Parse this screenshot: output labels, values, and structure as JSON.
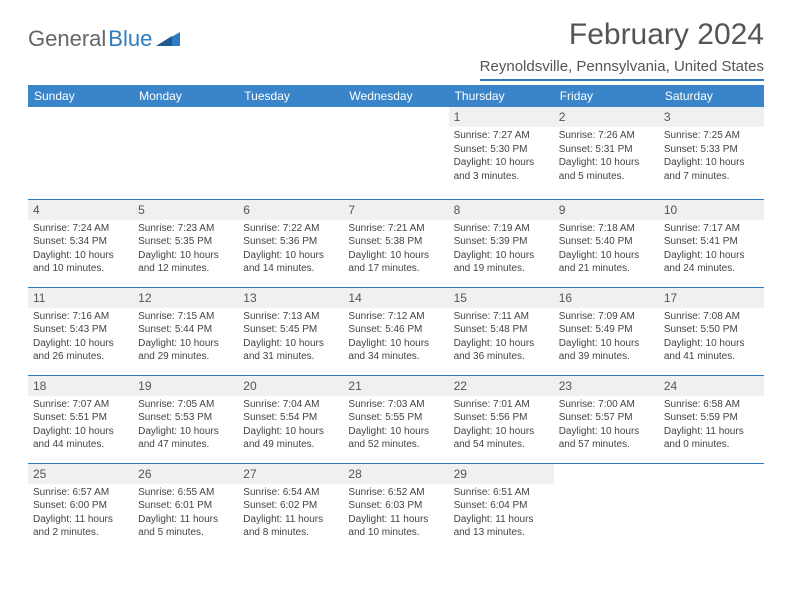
{
  "brand": {
    "part1": "General",
    "part2": "Blue"
  },
  "title": "February 2024",
  "location": "Reynoldsville, Pennsylvania, United States",
  "colors": {
    "header_bg": "#3a85c9",
    "header_text": "#ffffff",
    "border": "#2f7bbf",
    "daynum_bg": "#eff0f1",
    "text": "#444444"
  },
  "weekdays": [
    "Sunday",
    "Monday",
    "Tuesday",
    "Wednesday",
    "Thursday",
    "Friday",
    "Saturday"
  ],
  "weeks": [
    [
      null,
      null,
      null,
      null,
      {
        "n": "1",
        "sr": "Sunrise: 7:27 AM",
        "ss": "Sunset: 5:30 PM",
        "dl": "Daylight: 10 hours and 3 minutes."
      },
      {
        "n": "2",
        "sr": "Sunrise: 7:26 AM",
        "ss": "Sunset: 5:31 PM",
        "dl": "Daylight: 10 hours and 5 minutes."
      },
      {
        "n": "3",
        "sr": "Sunrise: 7:25 AM",
        "ss": "Sunset: 5:33 PM",
        "dl": "Daylight: 10 hours and 7 minutes."
      }
    ],
    [
      {
        "n": "4",
        "sr": "Sunrise: 7:24 AM",
        "ss": "Sunset: 5:34 PM",
        "dl": "Daylight: 10 hours and 10 minutes."
      },
      {
        "n": "5",
        "sr": "Sunrise: 7:23 AM",
        "ss": "Sunset: 5:35 PM",
        "dl": "Daylight: 10 hours and 12 minutes."
      },
      {
        "n": "6",
        "sr": "Sunrise: 7:22 AM",
        "ss": "Sunset: 5:36 PM",
        "dl": "Daylight: 10 hours and 14 minutes."
      },
      {
        "n": "7",
        "sr": "Sunrise: 7:21 AM",
        "ss": "Sunset: 5:38 PM",
        "dl": "Daylight: 10 hours and 17 minutes."
      },
      {
        "n": "8",
        "sr": "Sunrise: 7:19 AM",
        "ss": "Sunset: 5:39 PM",
        "dl": "Daylight: 10 hours and 19 minutes."
      },
      {
        "n": "9",
        "sr": "Sunrise: 7:18 AM",
        "ss": "Sunset: 5:40 PM",
        "dl": "Daylight: 10 hours and 21 minutes."
      },
      {
        "n": "10",
        "sr": "Sunrise: 7:17 AM",
        "ss": "Sunset: 5:41 PM",
        "dl": "Daylight: 10 hours and 24 minutes."
      }
    ],
    [
      {
        "n": "11",
        "sr": "Sunrise: 7:16 AM",
        "ss": "Sunset: 5:43 PM",
        "dl": "Daylight: 10 hours and 26 minutes."
      },
      {
        "n": "12",
        "sr": "Sunrise: 7:15 AM",
        "ss": "Sunset: 5:44 PM",
        "dl": "Daylight: 10 hours and 29 minutes."
      },
      {
        "n": "13",
        "sr": "Sunrise: 7:13 AM",
        "ss": "Sunset: 5:45 PM",
        "dl": "Daylight: 10 hours and 31 minutes."
      },
      {
        "n": "14",
        "sr": "Sunrise: 7:12 AM",
        "ss": "Sunset: 5:46 PM",
        "dl": "Daylight: 10 hours and 34 minutes."
      },
      {
        "n": "15",
        "sr": "Sunrise: 7:11 AM",
        "ss": "Sunset: 5:48 PM",
        "dl": "Daylight: 10 hours and 36 minutes."
      },
      {
        "n": "16",
        "sr": "Sunrise: 7:09 AM",
        "ss": "Sunset: 5:49 PM",
        "dl": "Daylight: 10 hours and 39 minutes."
      },
      {
        "n": "17",
        "sr": "Sunrise: 7:08 AM",
        "ss": "Sunset: 5:50 PM",
        "dl": "Daylight: 10 hours and 41 minutes."
      }
    ],
    [
      {
        "n": "18",
        "sr": "Sunrise: 7:07 AM",
        "ss": "Sunset: 5:51 PM",
        "dl": "Daylight: 10 hours and 44 minutes."
      },
      {
        "n": "19",
        "sr": "Sunrise: 7:05 AM",
        "ss": "Sunset: 5:53 PM",
        "dl": "Daylight: 10 hours and 47 minutes."
      },
      {
        "n": "20",
        "sr": "Sunrise: 7:04 AM",
        "ss": "Sunset: 5:54 PM",
        "dl": "Daylight: 10 hours and 49 minutes."
      },
      {
        "n": "21",
        "sr": "Sunrise: 7:03 AM",
        "ss": "Sunset: 5:55 PM",
        "dl": "Daylight: 10 hours and 52 minutes."
      },
      {
        "n": "22",
        "sr": "Sunrise: 7:01 AM",
        "ss": "Sunset: 5:56 PM",
        "dl": "Daylight: 10 hours and 54 minutes."
      },
      {
        "n": "23",
        "sr": "Sunrise: 7:00 AM",
        "ss": "Sunset: 5:57 PM",
        "dl": "Daylight: 10 hours and 57 minutes."
      },
      {
        "n": "24",
        "sr": "Sunrise: 6:58 AM",
        "ss": "Sunset: 5:59 PM",
        "dl": "Daylight: 11 hours and 0 minutes."
      }
    ],
    [
      {
        "n": "25",
        "sr": "Sunrise: 6:57 AM",
        "ss": "Sunset: 6:00 PM",
        "dl": "Daylight: 11 hours and 2 minutes."
      },
      {
        "n": "26",
        "sr": "Sunrise: 6:55 AM",
        "ss": "Sunset: 6:01 PM",
        "dl": "Daylight: 11 hours and 5 minutes."
      },
      {
        "n": "27",
        "sr": "Sunrise: 6:54 AM",
        "ss": "Sunset: 6:02 PM",
        "dl": "Daylight: 11 hours and 8 minutes."
      },
      {
        "n": "28",
        "sr": "Sunrise: 6:52 AM",
        "ss": "Sunset: 6:03 PM",
        "dl": "Daylight: 11 hours and 10 minutes."
      },
      {
        "n": "29",
        "sr": "Sunrise: 6:51 AM",
        "ss": "Sunset: 6:04 PM",
        "dl": "Daylight: 11 hours and 13 minutes."
      },
      null,
      null
    ]
  ]
}
